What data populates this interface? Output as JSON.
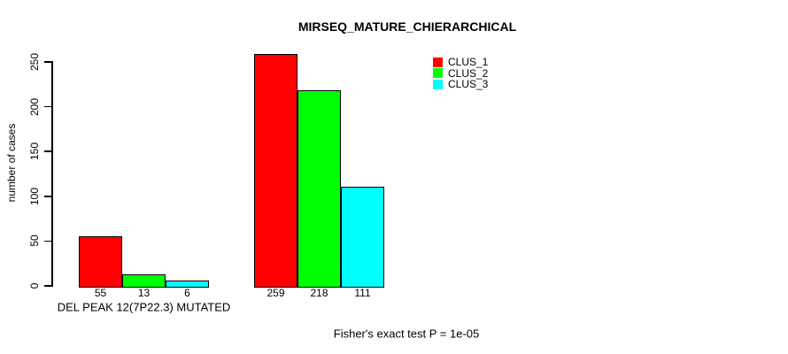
{
  "chart_data": {
    "type": "bar",
    "title": "MIRSEQ_MATURE_CHIERARCHICAL",
    "ylabel": "number of cases",
    "xlabel": "",
    "ylim": [
      0,
      260
    ],
    "yticks": [
      0,
      50,
      100,
      150,
      200,
      250
    ],
    "grid": false,
    "legend_position": "top-right",
    "bar_value_labels": true,
    "series": [
      {
        "name": "CLUS_1",
        "color": "#FF0000"
      },
      {
        "name": "CLUS_2",
        "color": "#00FF00"
      },
      {
        "name": "CLUS_3",
        "color": "#00FFFF"
      }
    ],
    "groups": [
      {
        "label": "DEL PEAK 12(7P22.3) MUTATED",
        "values": [
          55,
          13,
          6
        ]
      },
      {
        "label": "",
        "values": [
          259,
          218,
          111
        ]
      }
    ],
    "annotation": "Fisher's exact test P = 1e-05"
  },
  "colors": {
    "background": "#FFFFFF",
    "axis": "#000000",
    "text": "#000000",
    "bar_border": "#000000"
  }
}
